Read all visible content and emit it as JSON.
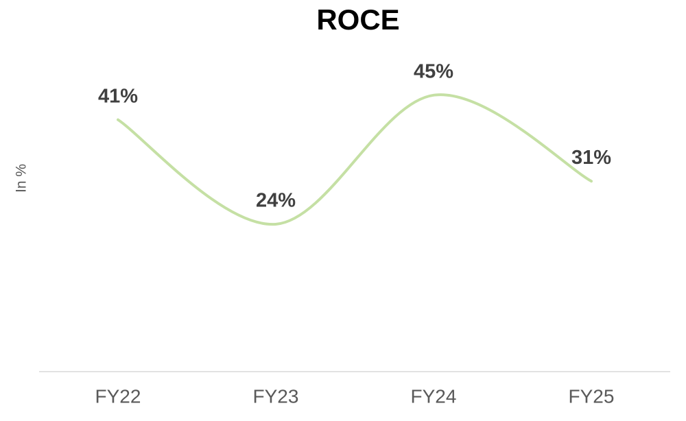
{
  "chart_data": {
    "type": "line",
    "title": "ROCE",
    "y_label": "In %",
    "categories": [
      "FY22",
      "FY23",
      "FY24",
      "FY25"
    ],
    "values": [
      41,
      24,
      45,
      31
    ],
    "value_labels": [
      "41%",
      "24%",
      "45%",
      "31%"
    ],
    "color": "#c5e0a4",
    "ylim": [
      0,
      50
    ],
    "smooth": true
  }
}
